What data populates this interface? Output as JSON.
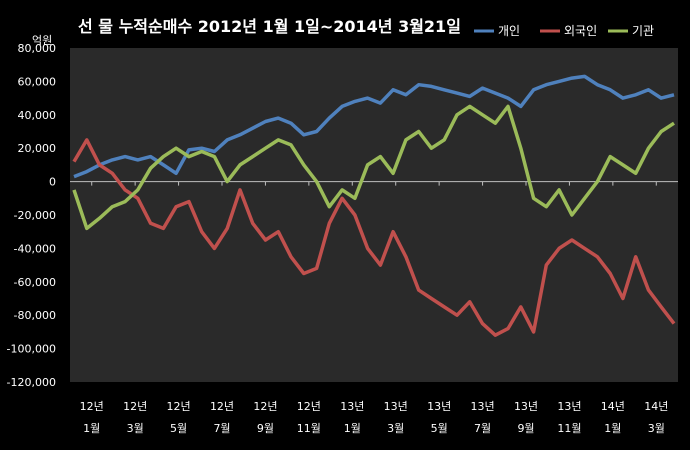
{
  "chart_data": {
    "type": "line",
    "title": "선 물 누적순매수 2012년 1월 1일~2014년 3월21일",
    "ylabel": "억원",
    "ylim": [
      -120000,
      80000
    ],
    "yticks": [
      "80,000",
      "60,000",
      "40,000",
      "20,000",
      "0",
      "-20,000",
      "-40,000",
      "-60,000",
      "-80,000",
      "-100,000",
      "-120,000"
    ],
    "ytick_values": [
      80000,
      60000,
      40000,
      20000,
      0,
      -20000,
      -40000,
      -60000,
      -80000,
      -100000,
      -120000
    ],
    "x_labels_year": [
      "12년",
      "12년",
      "12년",
      "12년",
      "12년",
      "12년",
      "13년",
      "13년",
      "13년",
      "13년",
      "13년",
      "13년",
      "14년",
      "14년"
    ],
    "x_labels_month": [
      "1월",
      "3월",
      "5월",
      "7월",
      "9월",
      "11월",
      "1월",
      "3월",
      "5월",
      "7월",
      "9월",
      "11월",
      "1월",
      "3월"
    ],
    "grid": false,
    "legend_position": "top-right",
    "series": [
      {
        "name": "개인",
        "color": "#4F81BD",
        "values": [
          3000,
          6000,
          10000,
          13000,
          15000,
          13000,
          15000,
          10000,
          5000,
          19000,
          20000,
          18000,
          25000,
          28000,
          32000,
          36000,
          38000,
          35000,
          28000,
          30000,
          38000,
          45000,
          48000,
          50000,
          47000,
          55000,
          52000,
          58000,
          57000,
          55000,
          53000,
          51000,
          56000,
          53000,
          50000,
          45000,
          55000,
          58000,
          60000,
          62000,
          63000,
          58000,
          55000,
          50000,
          52000,
          55000,
          50000,
          52000
        ]
      },
      {
        "name": "외국인",
        "color": "#C0504D",
        "values": [
          12000,
          25000,
          10000,
          5000,
          -5000,
          -10000,
          -25000,
          -28000,
          -15000,
          -12000,
          -30000,
          -40000,
          -28000,
          -5000,
          -25000,
          -35000,
          -30000,
          -45000,
          -55000,
          -52000,
          -25000,
          -10000,
          -20000,
          -40000,
          -50000,
          -30000,
          -45000,
          -65000,
          -70000,
          -75000,
          -80000,
          -72000,
          -85000,
          -92000,
          -88000,
          -75000,
          -90000,
          -50000,
          -40000,
          -35000,
          -40000,
          -45000,
          -55000,
          -70000,
          -45000,
          -65000,
          -75000,
          -85000
        ]
      },
      {
        "name": "기관",
        "color": "#9BBB59",
        "values": [
          -5000,
          -28000,
          -22000,
          -15000,
          -12000,
          -5000,
          8000,
          15000,
          20000,
          15000,
          18000,
          15000,
          0,
          10000,
          15000,
          20000,
          25000,
          22000,
          10000,
          0,
          -15000,
          -5000,
          -10000,
          10000,
          15000,
          5000,
          25000,
          30000,
          20000,
          25000,
          40000,
          45000,
          40000,
          35000,
          45000,
          20000,
          -10000,
          -15000,
          -5000,
          -20000,
          -10000,
          0,
          15000,
          10000,
          5000,
          20000,
          30000,
          35000
        ]
      }
    ]
  }
}
